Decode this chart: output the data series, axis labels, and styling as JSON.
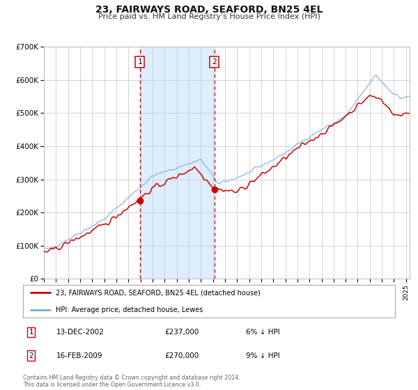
{
  "title": "23, FAIRWAYS ROAD, SEAFORD, BN25 4EL",
  "subtitle": "Price paid vs. HM Land Registry's House Price Index (HPI)",
  "legend_line1": "23, FAIRWAYS ROAD, SEAFORD, BN25 4EL (detached house)",
  "legend_line2": "HPI: Average price, detached house, Lewes",
  "transaction1_date": "13-DEC-2002",
  "transaction1_price": "£237,000",
  "transaction1_hpi": "6% ↓ HPI",
  "transaction1_year": 2002.96,
  "transaction1_value": 237000,
  "transaction2_date": "16-FEB-2009",
  "transaction2_price": "£270,000",
  "transaction2_hpi": "9% ↓ HPI",
  "transaction2_year": 2009.12,
  "transaction2_value": 270000,
  "price_line_color": "#cc0000",
  "hpi_line_color": "#7aaddb",
  "shade_color": "#ddeeff",
  "vline_color": "#cc0000",
  "marker_color": "#cc0000",
  "background_color": "#ffffff",
  "grid_color": "#cccccc",
  "ylim": [
    0,
    700000
  ],
  "xlim_start": 1995,
  "xlim_end": 2025.3,
  "footnote": "Contains HM Land Registry data © Crown copyright and database right 2024.\nThis data is licensed under the Open Government Licence v3.0."
}
